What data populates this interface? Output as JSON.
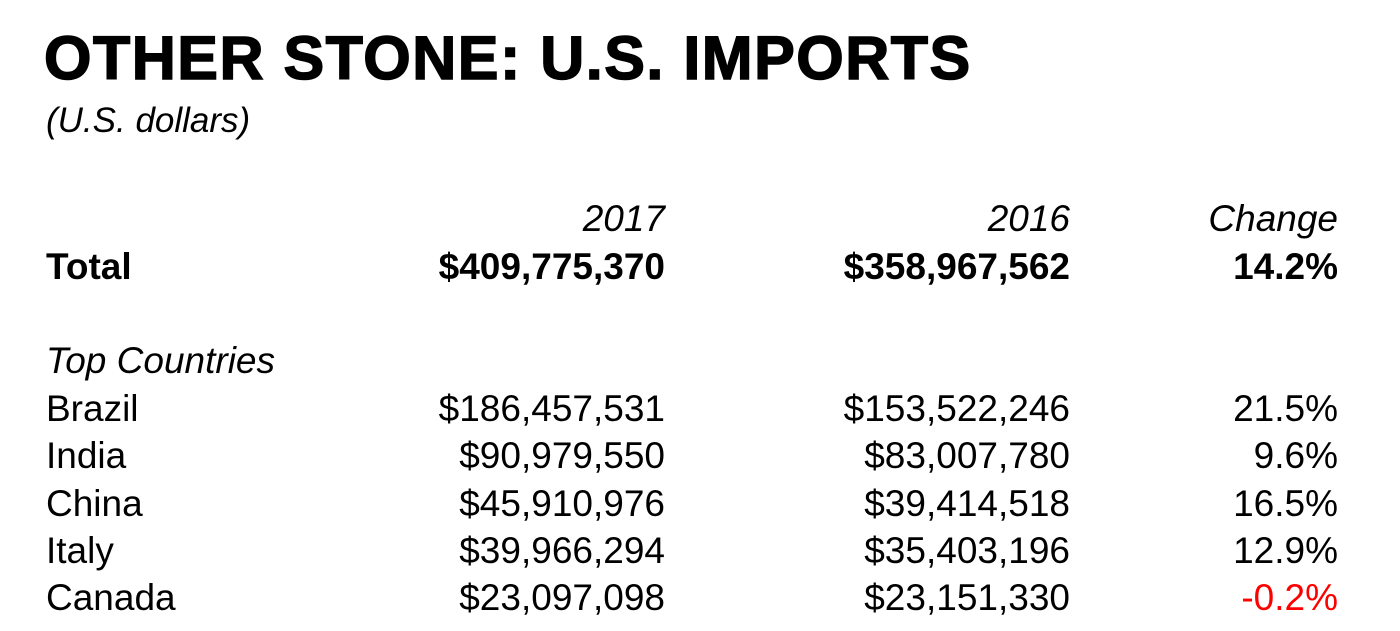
{
  "header": {
    "title": "OTHER STONE: U.S. IMPORTS",
    "subtitle": "(U.S. dollars)"
  },
  "table": {
    "columns": [
      "2017",
      "2016",
      "Change"
    ],
    "total": {
      "label": "Total",
      "values": [
        "$409,775,370",
        "$358,967,562",
        "14.2%"
      ]
    },
    "section_label": "Top Countries",
    "rows": [
      [
        "Brazil",
        "$186,457,531",
        "$153,522,246",
        "21.5%"
      ],
      [
        "India",
        "$90,979,550",
        "$83,007,780",
        "9.6%"
      ],
      [
        "China",
        "$45,910,976",
        "$39,414,518",
        "16.5%"
      ],
      [
        "Italy",
        "$39,966,294",
        "$35,403,196",
        "12.9%"
      ],
      [
        "Canada",
        "$23,097,098",
        "$23,151,330",
        "-0.2%"
      ]
    ]
  }
}
